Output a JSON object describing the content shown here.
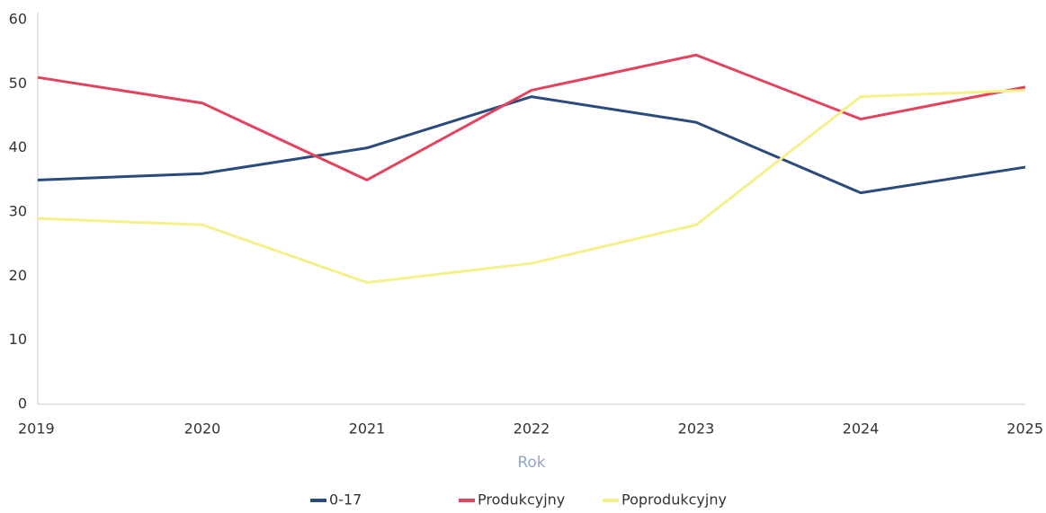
{
  "chart_data": {
    "type": "line",
    "x_label": "Rok",
    "categories": [
      "2019",
      "2020",
      "2021",
      "2022",
      "2023",
      "2024",
      "2025"
    ],
    "series": [
      {
        "name": "0-17",
        "color": "#2b4b7c",
        "values": [
          35,
          36,
          40,
          48,
          44,
          33,
          37
        ]
      },
      {
        "name": "Produkcyjny",
        "color": "#e2445f",
        "values": [
          51,
          47,
          35,
          49,
          54.5,
          44.5,
          49.5
        ]
      },
      {
        "name": "Poprodukcyjny",
        "color": "#f4f08c",
        "values": [
          29,
          28,
          19,
          22,
          28,
          48,
          49
        ]
      }
    ],
    "ylim": [
      0,
      60
    ],
    "yticks": [
      0,
      10,
      20,
      30,
      40,
      50,
      60
    ],
    "grid": false,
    "legend": "bottom"
  }
}
